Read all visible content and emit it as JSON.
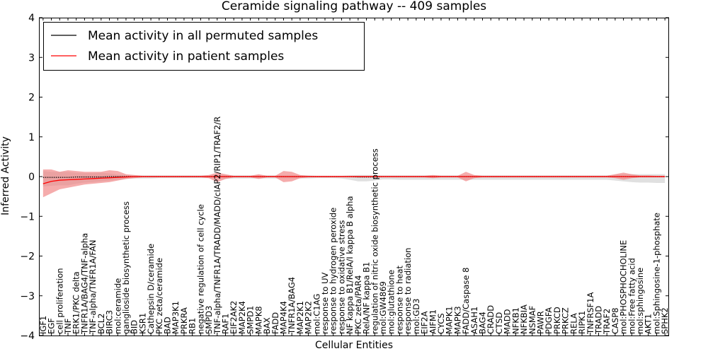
{
  "chart_data": {
    "type": "line",
    "title": "Ceramide signaling pathway -- 409 samples",
    "xlabel": "Cellular Entities",
    "ylabel": "Inferred Activity",
    "ylim": [
      -4,
      4
    ],
    "yticks": [
      "−4",
      "−3",
      "−2",
      "−1",
      "0",
      "1",
      "2",
      "3",
      "4"
    ],
    "grid": false,
    "legend_position": "top-left",
    "categories": [
      "IGF1",
      "EGF",
      "cell proliferation",
      "TNF",
      "ERK1/PKC delta",
      "TNFR1A/BAG4/TNF-alpha",
      "TNF-alpha/TNFR1A/FAN",
      "BCL2",
      "BIRC3",
      "mol:ceramide",
      "ganglioside biosynthetic process",
      "BID",
      "KSR1",
      "Cathepsin D/ceramide",
      "PKC zeta/ceramide",
      "BAD",
      "MAP3K1",
      "PRKRA",
      "RB1",
      "negative regulation of cell cycle",
      "SMPD3",
      "TNF-alpha/TNFR1A/TRADD/MADD/cIAP2/RIP1/TRAF2/R",
      "RAF1",
      "EIF2AK2",
      "MAP2K4",
      "SMPD1",
      "MAPK8",
      "BAX",
      "FADD",
      "MAP4K4",
      "TNFR1A/BAG4",
      "MAP2K1",
      "MAP2K2",
      "mol:C1AG",
      "response to UV",
      "response to hydrogen peroxide",
      "response to oxidative stress",
      "NF kappa B1/RelA/I kappa B alpha",
      "PKC zeta/PAR4",
      "RelA/NF kappa B1",
      "regulation of nitric oxide biosynthetic process",
      "mol:GW4869",
      "mol:glutathione",
      "response to heat",
      "response to radiation",
      "mol:GD3",
      "EIF2A",
      "AIFM1",
      "CYCS",
      "MAPK1",
      "MAPK3",
      "FADD/Caspase 8",
      "ASAH1",
      "BAG4",
      "CRADD",
      "CTSD",
      "MADD",
      "NFKB1",
      "NFKBIA",
      "NSMAF",
      "PAWR",
      "PDGFA",
      "PRKCD",
      "PRKCZ",
      "RELA",
      "RIPK1",
      "TNFRSF1A",
      "TRADD",
      "TRAF2",
      "CASP8",
      "mol:PHOSPHOCHOLINE",
      "mol:Free fatty acid",
      "mol:sphingosine",
      "AKT1",
      "mol:Sphingosine-1-phosphate",
      "SPHK2"
    ],
    "series": [
      {
        "name": "Mean activity in all permuted samples",
        "color": "#000000",
        "values": [
          -0.02,
          -0.02,
          -0.02,
          -0.02,
          -0.01,
          -0.01,
          -0.01,
          -0.01,
          0.0,
          0.0,
          0.0,
          0.0,
          0.0,
          0.0,
          0.0,
          0.0,
          0.0,
          0.0,
          0.0,
          0.0,
          0.0,
          0.0,
          0.0,
          0.0,
          0.0,
          0.0,
          0.0,
          0.0,
          0.0,
          0.0,
          0.0,
          0.0,
          0.0,
          0.0,
          0.0,
          0.0,
          0.0,
          0.0,
          -0.01,
          -0.01,
          -0.01,
          0.0,
          0.0,
          0.0,
          0.0,
          0.0,
          0.0,
          0.0,
          0.0,
          0.0,
          0.0,
          0.0,
          0.0,
          0.0,
          0.0,
          0.0,
          0.0,
          0.0,
          0.0,
          0.0,
          0.0,
          0.0,
          0.0,
          0.0,
          0.0,
          0.0,
          0.0,
          0.0,
          0.0,
          0.0,
          0.0,
          0.0,
          0.0,
          0.0,
          0.0,
          0.0
        ],
        "band_upper": [
          0.14,
          0.12,
          0.12,
          0.12,
          0.1,
          0.09,
          0.09,
          0.1,
          0.08,
          0.05,
          0.04,
          0.03,
          0.03,
          0.03,
          0.03,
          0.03,
          0.03,
          0.03,
          0.03,
          0.03,
          0.03,
          0.04,
          0.04,
          0.03,
          0.03,
          0.03,
          0.03,
          0.03,
          0.03,
          0.03,
          0.03,
          0.03,
          0.03,
          0.02,
          0.02,
          0.02,
          0.02,
          0.03,
          0.04,
          0.04,
          0.04,
          0.03,
          0.03,
          0.03,
          0.03,
          0.03,
          0.03,
          0.03,
          0.03,
          0.03,
          0.03,
          0.03,
          0.03,
          0.03,
          0.03,
          0.03,
          0.03,
          0.03,
          0.03,
          0.03,
          0.03,
          0.03,
          0.03,
          0.03,
          0.03,
          0.03,
          0.03,
          0.03,
          0.03,
          0.05,
          0.06,
          0.06,
          0.06,
          0.06,
          0.06,
          0.06
        ],
        "band_lower": [
          -0.25,
          -0.23,
          -0.22,
          -0.22,
          -0.18,
          -0.15,
          -0.14,
          -0.12,
          -0.1,
          -0.08,
          -0.06,
          -0.05,
          -0.05,
          -0.05,
          -0.04,
          -0.04,
          -0.04,
          -0.04,
          -0.04,
          -0.04,
          -0.04,
          -0.05,
          -0.06,
          -0.05,
          -0.05,
          -0.05,
          -0.05,
          -0.05,
          -0.05,
          -0.05,
          -0.05,
          -0.05,
          -0.05,
          -0.04,
          -0.04,
          -0.04,
          -0.05,
          -0.08,
          -0.12,
          -0.12,
          -0.1,
          -0.07,
          -0.07,
          -0.08,
          -0.08,
          -0.08,
          -0.08,
          -0.08,
          -0.08,
          -0.08,
          -0.08,
          -0.08,
          -0.08,
          -0.08,
          -0.08,
          -0.08,
          -0.08,
          -0.08,
          -0.08,
          -0.08,
          -0.08,
          -0.08,
          -0.08,
          -0.08,
          -0.08,
          -0.08,
          -0.08,
          -0.08,
          -0.08,
          -0.1,
          -0.12,
          -0.14,
          -0.15,
          -0.15,
          -0.16,
          -0.16
        ]
      },
      {
        "name": "Mean activity in patient samples",
        "color": "#ff0000",
        "values": [
          -0.18,
          -0.12,
          -0.09,
          -0.08,
          -0.07,
          -0.06,
          -0.05,
          -0.04,
          -0.03,
          -0.02,
          -0.01,
          0.0,
          0.0,
          0.0,
          0.0,
          0.0,
          0.0,
          0.0,
          0.0,
          0.0,
          0.0,
          0.0,
          0.0,
          0.0,
          0.0,
          0.0,
          0.0,
          0.0,
          0.0,
          0.0,
          0.0,
          0.0,
          0.0,
          0.0,
          0.0,
          0.0,
          0.0,
          0.0,
          0.0,
          0.0,
          0.0,
          0.0,
          0.0,
          0.0,
          0.0,
          0.0,
          0.0,
          0.0,
          0.0,
          0.0,
          0.0,
          0.0,
          0.0,
          0.0,
          0.0,
          0.0,
          0.0,
          0.0,
          0.0,
          0.0,
          0.0,
          0.0,
          0.0,
          0.0,
          0.0,
          0.0,
          0.0,
          0.0,
          0.0,
          0.0,
          0.0,
          0.0,
          0.0,
          0.0,
          0.0,
          0.0
        ],
        "band_upper": [
          0.18,
          0.18,
          0.12,
          0.16,
          0.14,
          0.12,
          0.12,
          0.12,
          0.16,
          0.14,
          0.06,
          0.04,
          0.02,
          0.02,
          0.02,
          0.02,
          0.02,
          0.02,
          0.02,
          0.02,
          0.04,
          0.1,
          0.06,
          0.02,
          0.02,
          0.02,
          0.06,
          0.02,
          0.02,
          0.14,
          0.12,
          0.04,
          0.02,
          0.02,
          0.02,
          0.02,
          0.02,
          0.02,
          0.02,
          0.02,
          0.02,
          0.02,
          0.02,
          0.02,
          0.02,
          0.02,
          0.02,
          0.04,
          0.02,
          0.02,
          0.02,
          0.12,
          0.04,
          0.02,
          0.02,
          0.02,
          0.02,
          0.02,
          0.02,
          0.02,
          0.02,
          0.02,
          0.02,
          0.02,
          0.02,
          0.02,
          0.02,
          0.02,
          0.02,
          0.06,
          0.1,
          0.06,
          0.03,
          0.03,
          0.02,
          0.02
        ],
        "band_lower": [
          -0.52,
          -0.42,
          -0.32,
          -0.28,
          -0.24,
          -0.2,
          -0.18,
          -0.16,
          -0.14,
          -0.1,
          -0.06,
          -0.04,
          -0.02,
          -0.02,
          -0.02,
          -0.02,
          -0.02,
          -0.02,
          -0.02,
          -0.02,
          -0.04,
          -0.14,
          -0.06,
          -0.02,
          -0.02,
          -0.02,
          -0.06,
          -0.02,
          -0.02,
          -0.14,
          -0.12,
          -0.04,
          -0.02,
          -0.02,
          -0.02,
          -0.02,
          -0.02,
          -0.02,
          -0.02,
          -0.02,
          -0.02,
          -0.02,
          -0.02,
          -0.02,
          -0.02,
          -0.02,
          -0.02,
          -0.04,
          -0.02,
          -0.02,
          -0.02,
          -0.12,
          -0.04,
          -0.02,
          -0.02,
          -0.02,
          -0.02,
          -0.02,
          -0.02,
          -0.02,
          -0.02,
          -0.02,
          -0.02,
          -0.02,
          -0.02,
          -0.02,
          -0.02,
          -0.02,
          -0.02,
          -0.04,
          -0.08,
          -0.04,
          -0.02,
          -0.02,
          -0.02,
          -0.02
        ]
      }
    ]
  }
}
